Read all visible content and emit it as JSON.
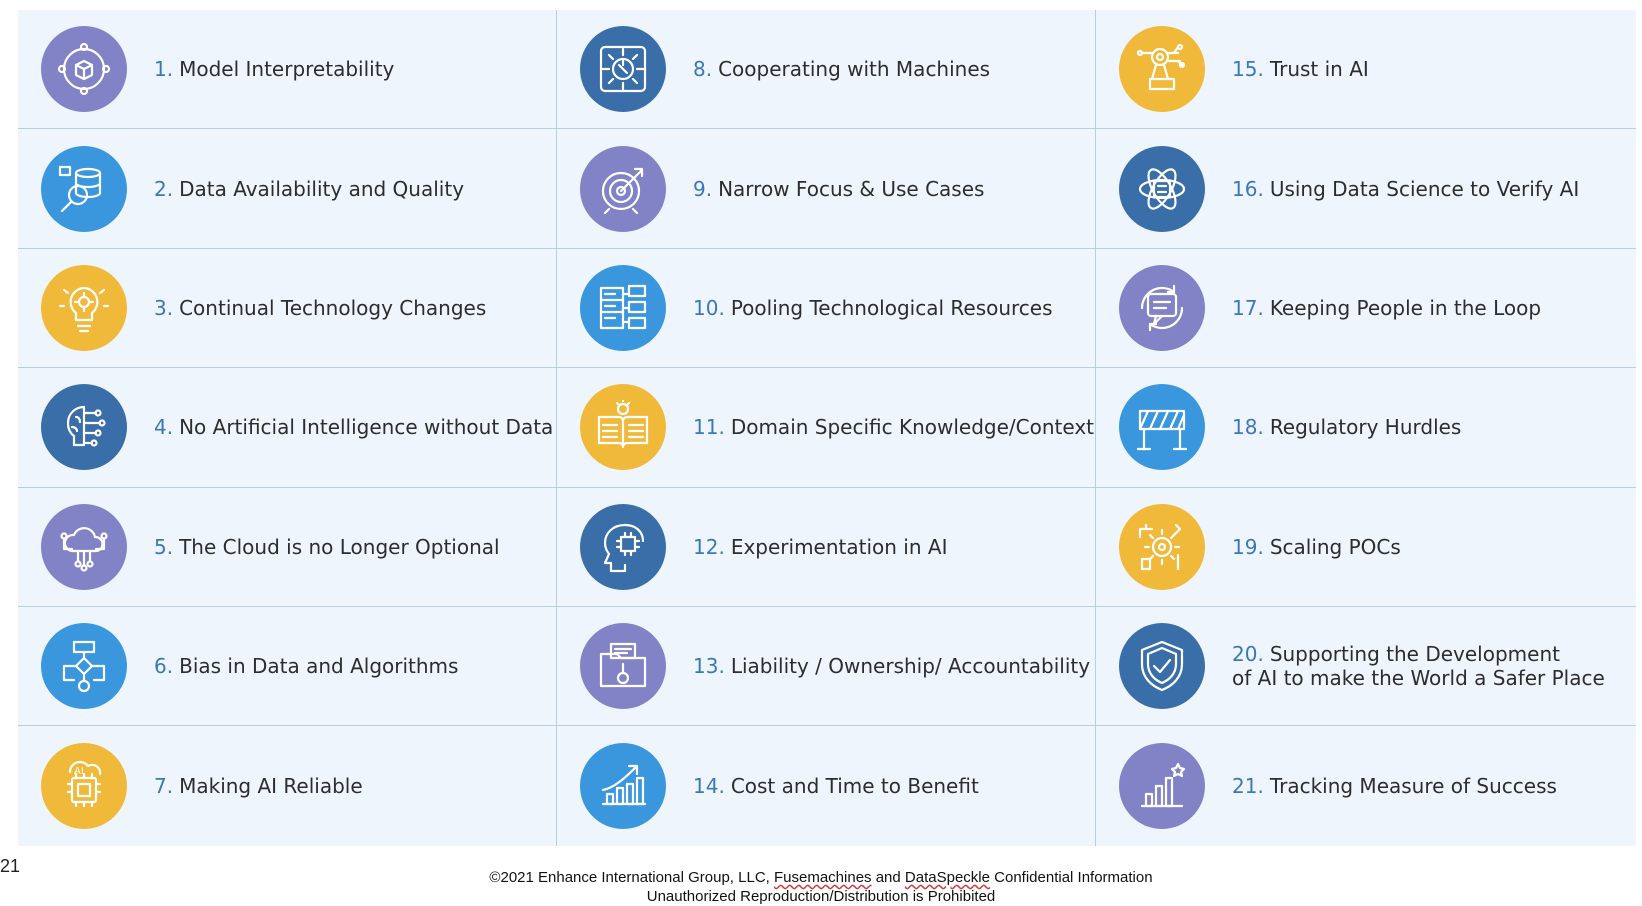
{
  "colors": {
    "purple": "#8283c6",
    "blue": "#3b97dd",
    "yellow": "#f0b93a",
    "navy": "#3a6ea8",
    "cell_bg": "#eef5fc",
    "number": "#3a78b8"
  },
  "challenges": [
    {
      "num": "1.",
      "text": "Model Interpretability",
      "icon": "cube-network-icon",
      "color": "#8283c6"
    },
    {
      "num": "2.",
      "text": "Data Availability and Quality",
      "icon": "database-magnifier-icon",
      "color": "#3b97dd"
    },
    {
      "num": "3.",
      "text": "Continual Technology Changes",
      "icon": "lightbulb-gear-icon",
      "color": "#f0b93a"
    },
    {
      "num": "4.",
      "text": "No Artificial Intelligence without Data",
      "icon": "brain-circuit-icon",
      "color": "#3a6ea8"
    },
    {
      "num": "5.",
      "text": "The Cloud is no Longer Optional",
      "icon": "cloud-network-icon",
      "color": "#8283c6"
    },
    {
      "num": "6.",
      "text": "Bias in Data and Algorithms",
      "icon": "flowchart-icon",
      "color": "#3b97dd"
    },
    {
      "num": "7.",
      "text": "Making AI Reliable",
      "icon": "ai-chip-icon",
      "color": "#f0b93a"
    },
    {
      "num": "8.",
      "text": "Cooperating with Machines",
      "icon": "gear-wrench-circuit-icon",
      "color": "#3a6ea8"
    },
    {
      "num": "9.",
      "text": "Narrow Focus & Use Cases",
      "icon": "target-arrow-icon",
      "color": "#8283c6"
    },
    {
      "num": "10.",
      "text": "Pooling Technological Resources",
      "icon": "server-stack-icon",
      "color": "#3b97dd"
    },
    {
      "num": "11.",
      "text": "Domain Specific Knowledge/Context",
      "icon": "book-lightbulb-icon",
      "color": "#f0b93a"
    },
    {
      "num": "12.",
      "text": "Experimentation in AI",
      "icon": "head-chip-icon",
      "color": "#3a6ea8"
    },
    {
      "num": "13.",
      "text": "Liability / Ownership/ Accountability",
      "icon": "folder-key-icon",
      "color": "#8283c6"
    },
    {
      "num": "14.",
      "text": "Cost and Time to Benefit",
      "icon": "bar-chart-arrow-icon",
      "color": "#3b97dd"
    },
    {
      "num": "15.",
      "text": "Trust in AI",
      "icon": "robot-arm-icon",
      "color": "#f0b93a"
    },
    {
      "num": "16.",
      "text": "Using Data Science to Verify AI",
      "icon": "atom-server-icon",
      "color": "#3a6ea8"
    },
    {
      "num": "17.",
      "text": "Keeping People in the Loop",
      "icon": "chat-cycle-icon",
      "color": "#8283c6"
    },
    {
      "num": "18.",
      "text": "Regulatory Hurdles",
      "icon": "barrier-icon",
      "color": "#3b97dd"
    },
    {
      "num": "19.",
      "text": "Scaling POCs",
      "icon": "gear-puzzle-icon",
      "color": "#f0b93a"
    },
    {
      "num": "20.",
      "text": "Supporting the Development",
      "text2": "of AI to make the World a Safer Place",
      "icon": "shield-check-icon",
      "color": "#3a6ea8"
    },
    {
      "num": "21.",
      "text": "Tracking Measure of Success",
      "icon": "bar-chart-star-icon",
      "color": "#8283c6"
    }
  ],
  "slide_number": "21",
  "footer": {
    "line1_a": "©2021 Enhance International Group, LLC, ",
    "line1_b": "Fusemachines",
    "line1_c": " and ",
    "line1_d": "DataSpeckle",
    "line1_e": " Confidential Information",
    "line2": "Unauthorized Reproduction/Distribution is Prohibited"
  }
}
